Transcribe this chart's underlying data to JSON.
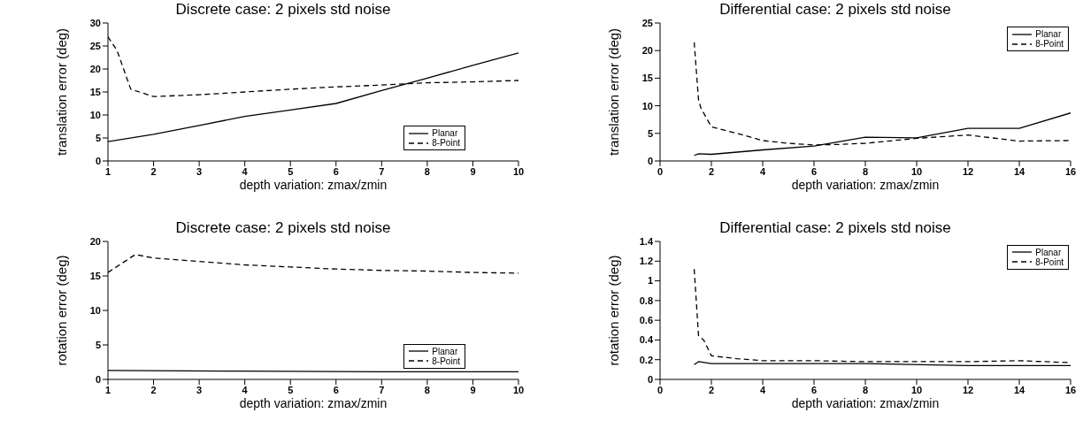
{
  "chart_data": [
    {
      "type": "line",
      "title": "Discrete case: 2 pixels std noise",
      "xlabel": "depth variation: zmax/zmin",
      "ylabel": "translation error (deg)",
      "xlim": [
        1,
        10
      ],
      "xticks": [
        1,
        2,
        3,
        4,
        5,
        6,
        7,
        8,
        9,
        10
      ],
      "ylim": [
        0,
        30
      ],
      "yticks": [
        0,
        5,
        10,
        15,
        20,
        25,
        30
      ],
      "legend": "right",
      "grid": false,
      "series": [
        {
          "name": "Planar",
          "color": "#000000",
          "line_style": "solid",
          "x": [
            1,
            2,
            3,
            4,
            5,
            6,
            7,
            8,
            9,
            10
          ],
          "values": [
            4.2,
            5.8,
            7.7,
            9.7,
            11.1,
            12.5,
            15.3,
            18,
            20.8,
            23.5
          ]
        },
        {
          "name": "8-Point",
          "color": "#000000",
          "line_style": "dashed",
          "x": [
            1,
            1.2,
            1.5,
            2,
            3,
            4,
            5,
            6,
            7,
            8,
            9,
            10
          ],
          "values": [
            27,
            24,
            15.6,
            14,
            14.4,
            15,
            15.6,
            16.1,
            16.5,
            17,
            17.2,
            17.5
          ]
        }
      ]
    },
    {
      "type": "line",
      "title": "Differential case: 2 pixels std noise",
      "xlabel": "depth variation: zmax/zmin",
      "ylabel": "translation error (deg)",
      "xlim": [
        0,
        16
      ],
      "xticks": [
        0,
        2,
        4,
        6,
        8,
        10,
        12,
        14,
        16
      ],
      "ylim": [
        0,
        25
      ],
      "yticks": [
        0,
        5,
        10,
        15,
        20,
        25
      ],
      "legend": "top right",
      "grid": false,
      "series": [
        {
          "name": "Planar",
          "color": "#000000",
          "line_style": "solid",
          "x": [
            1.33,
            1.5,
            2,
            4,
            6,
            8,
            10,
            12,
            14,
            16
          ],
          "values": [
            1,
            1.3,
            1.2,
            2,
            2.7,
            4.3,
            4.2,
            5.9,
            5.9,
            8.7
          ]
        },
        {
          "name": "8-Point",
          "color": "#000000",
          "line_style": "dashed",
          "x": [
            1.33,
            1.5,
            1.6,
            2,
            3,
            4,
            5,
            6,
            7,
            8,
            10,
            12,
            14,
            16
          ],
          "values": [
            21.5,
            11,
            9.5,
            6.2,
            5,
            3.7,
            3.2,
            2.9,
            3,
            3.2,
            4.1,
            4.7,
            3.6,
            3.7
          ]
        }
      ]
    },
    {
      "type": "line",
      "title": "Discrete case: 2 pixels std noise",
      "xlabel": "depth variation: zmax/zmin",
      "ylabel": "rotation error (deg)",
      "xlim": [
        1,
        10
      ],
      "xticks": [
        1,
        2,
        3,
        4,
        5,
        6,
        7,
        8,
        9,
        10
      ],
      "ylim": [
        0,
        20
      ],
      "yticks": [
        0,
        5,
        10,
        15,
        20
      ],
      "legend": "right",
      "grid": false,
      "series": [
        {
          "name": "Planar",
          "color": "#000000",
          "line_style": "solid",
          "x": [
            1,
            4,
            7,
            10
          ],
          "values": [
            1.3,
            1.2,
            1.1,
            1.1
          ]
        },
        {
          "name": "8-Point",
          "color": "#000000",
          "line_style": "dashed",
          "x": [
            1,
            1.6,
            2,
            3,
            4,
            5,
            6,
            7,
            8,
            9,
            10
          ],
          "values": [
            15.5,
            18.1,
            17.6,
            17.1,
            16.6,
            16.3,
            16,
            15.8,
            15.7,
            15.5,
            15.4
          ]
        }
      ]
    },
    {
      "type": "line",
      "title": "Differential case: 2 pixels std noise",
      "xlabel": "depth variation: zmax/zmin",
      "ylabel": "rotation error (deg)",
      "xlim": [
        0,
        16
      ],
      "xticks": [
        0,
        2,
        4,
        6,
        8,
        10,
        12,
        14,
        16
      ],
      "ylim": [
        0,
        1.4
      ],
      "yticks": [
        0,
        0.2,
        0.4,
        0.6,
        0.8,
        1,
        1.2,
        1.4
      ],
      "legend": "top right",
      "grid": false,
      "series": [
        {
          "name": "Planar",
          "color": "#000000",
          "line_style": "solid",
          "x": [
            1.33,
            1.5,
            2,
            4,
            8,
            12,
            16
          ],
          "values": [
            0.15,
            0.18,
            0.16,
            0.16,
            0.16,
            0.14,
            0.14
          ]
        },
        {
          "name": "8-Point",
          "color": "#000000",
          "line_style": "dashed",
          "x": [
            1.33,
            1.5,
            1.7,
            2,
            3,
            4,
            6,
            8,
            10,
            12,
            14,
            16
          ],
          "values": [
            1.12,
            0.44,
            0.4,
            0.24,
            0.21,
            0.19,
            0.19,
            0.18,
            0.18,
            0.18,
            0.19,
            0.17
          ]
        }
      ]
    }
  ]
}
